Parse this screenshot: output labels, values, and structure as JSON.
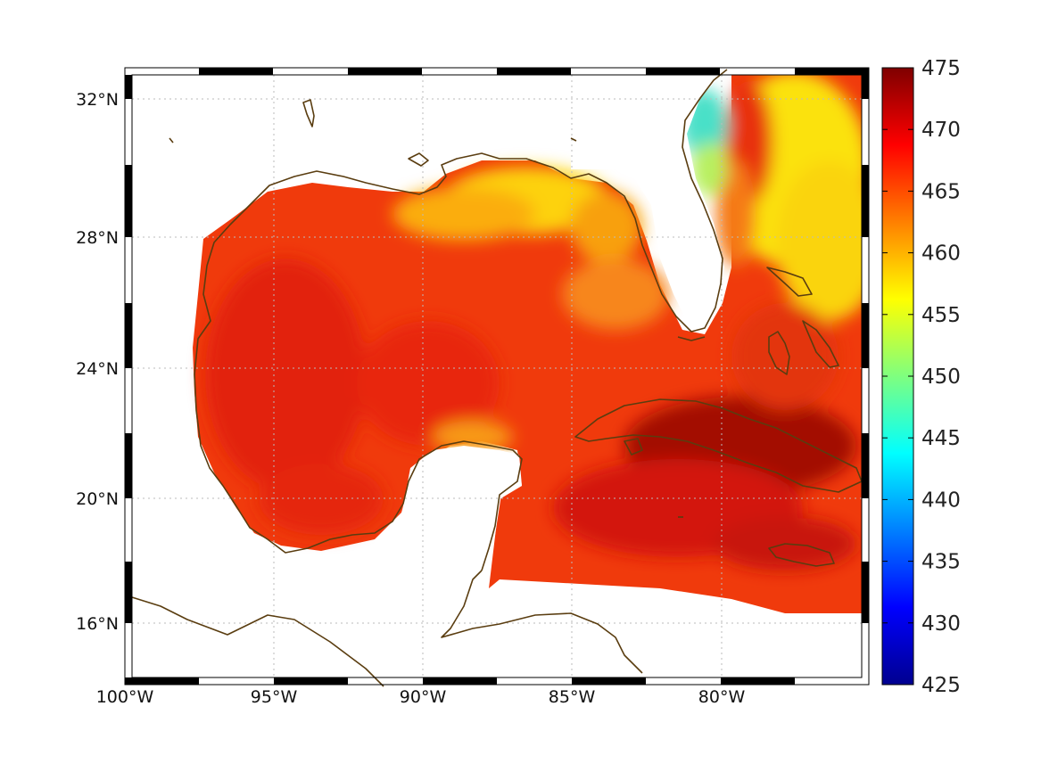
{
  "map": {
    "region": "Gulf of Mexico / Caribbean",
    "lon_range": [
      -100,
      -75
    ],
    "lat_range": [
      14.5,
      32.8
    ],
    "lon_ticks": [
      {
        "value": -100,
        "label": "100°W"
      },
      {
        "value": -95,
        "label": "95°W"
      },
      {
        "value": -90,
        "label": "90°W"
      },
      {
        "value": -85,
        "label": "85°W"
      },
      {
        "value": -80,
        "label": "80°W"
      }
    ],
    "lat_ticks": [
      {
        "value": 32,
        "label": "32°N"
      },
      {
        "value": 28,
        "label": "28°N"
      },
      {
        "value": 24,
        "label": "24°N"
      },
      {
        "value": 20,
        "label": "20°N"
      },
      {
        "value": 16,
        "label": "16°N"
      }
    ],
    "grid": "dotted",
    "coastline_color": "#5a3d10",
    "colormap": "jet"
  },
  "colorbar": {
    "min": 425,
    "max": 475,
    "ticks": [
      "475",
      "470",
      "465",
      "460",
      "455",
      "450",
      "445",
      "440",
      "435",
      "430",
      "425"
    ]
  },
  "chart_data": {
    "type": "heatmap",
    "title": "",
    "xlabel": "",
    "ylabel": "",
    "x_range": [
      -100,
      -75
    ],
    "y_range": [
      14.5,
      32.8
    ],
    "value_range": [
      425,
      475
    ],
    "approx_regions": [
      {
        "area": "western/central Gulf of Mexico",
        "value": 468
      },
      {
        "area": "northern Gulf shelf (Mississippi to Florida panhandle)",
        "value": 458
      },
      {
        "area": "north of Cuba / Straits of Florida",
        "value": 468
      },
      {
        "area": "Cuba and Cayman region",
        "value": 472
      },
      {
        "area": "Atlantic off Florida/Georgia",
        "value": 457
      },
      {
        "area": "Georgia/South Carolina coast",
        "value": 447
      }
    ]
  }
}
